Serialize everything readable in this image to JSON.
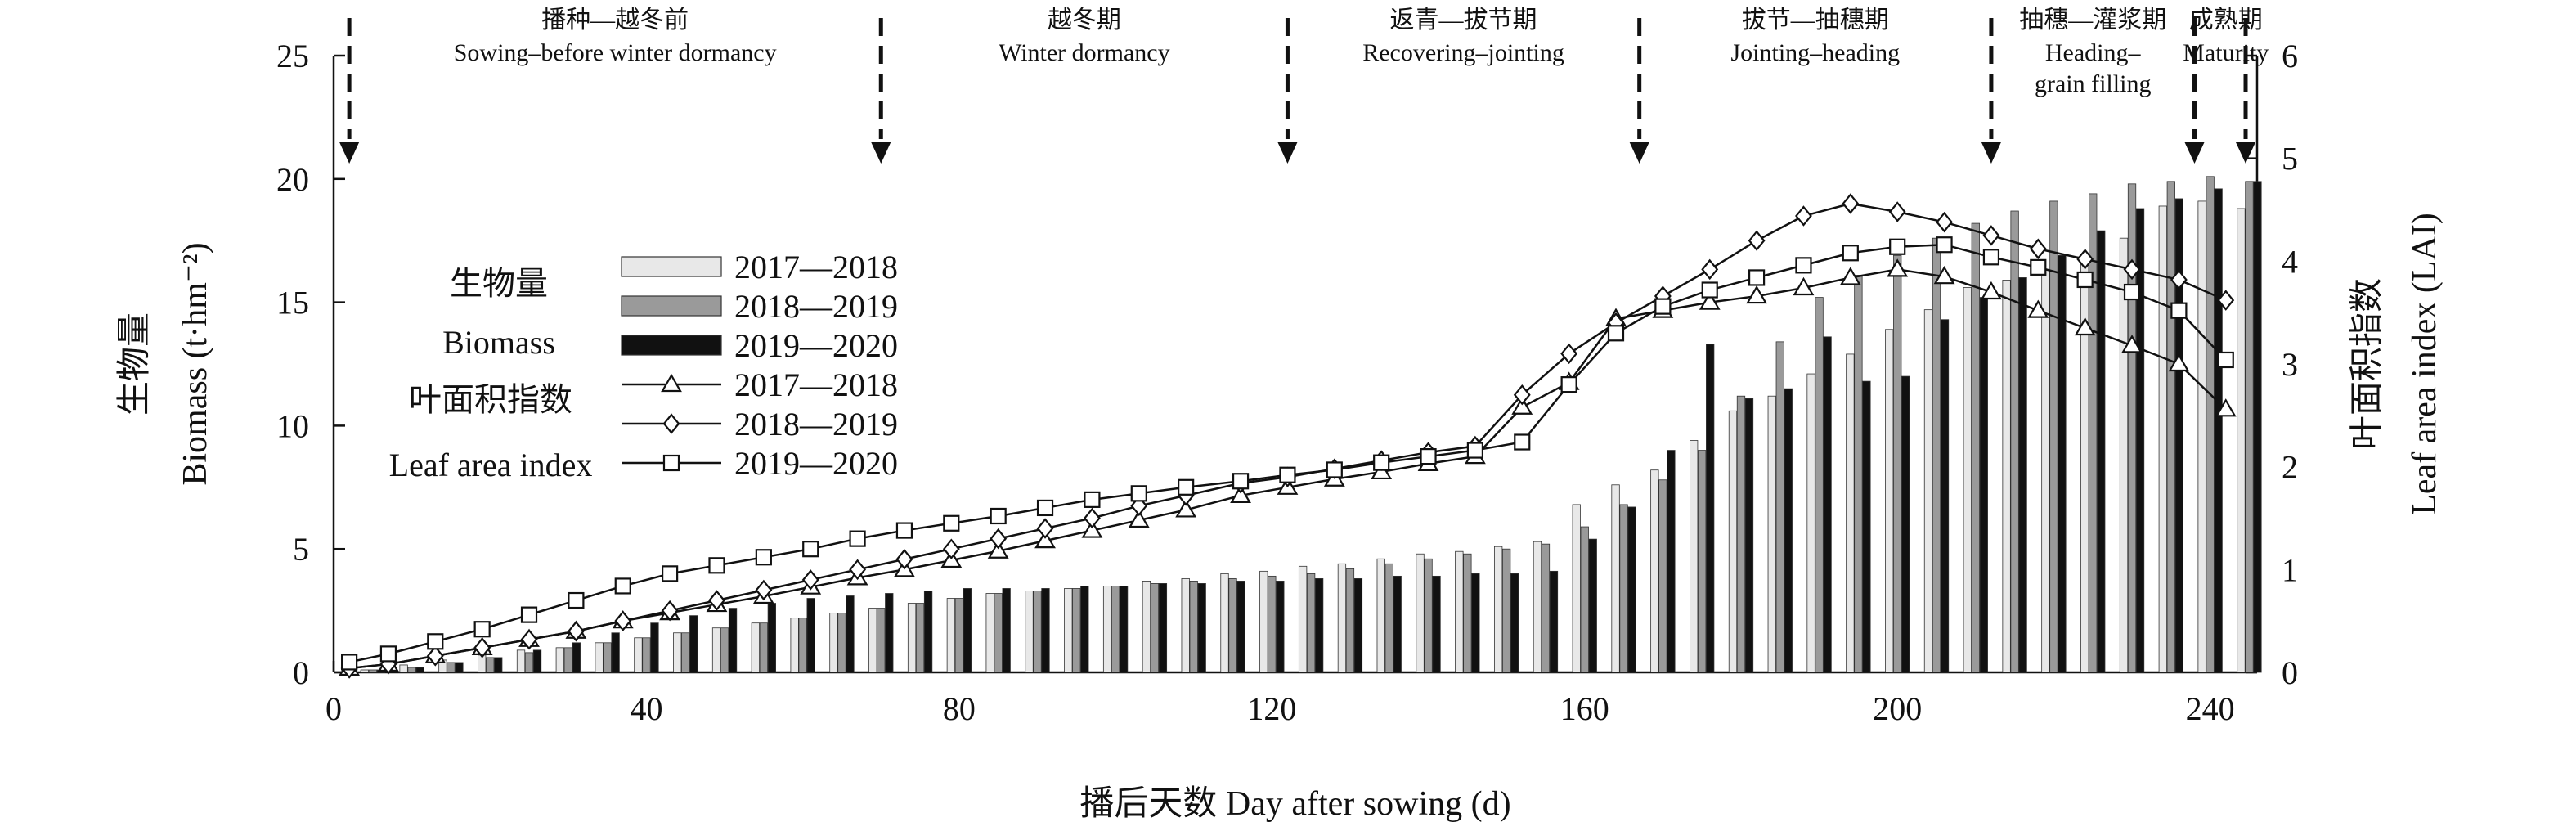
{
  "chart_data": {
    "type": "bar+line",
    "xlabel": "播后天数 Day after sowing (d)",
    "ylabel_left": [
      "生物量",
      "Biomass (t·hm⁻²)"
    ],
    "ylabel_right": [
      "叶面积指数",
      "Leaf area index (LAI)"
    ],
    "xlim": [
      0,
      246
    ],
    "ylim_left": [
      0,
      25
    ],
    "ylim_right": [
      0,
      6
    ],
    "x_ticks": [
      "0",
      "40",
      "80",
      "120",
      "160",
      "200",
      "240"
    ],
    "y_left_ticks": [
      "0",
      "5",
      "10",
      "15",
      "20",
      "25"
    ],
    "y_right_ticks": [
      "0",
      "1",
      "2",
      "3",
      "4",
      "5",
      "6"
    ],
    "stage_boundaries": [
      2,
      70,
      122,
      167,
      212,
      238,
      251
    ],
    "stages": [
      {
        "cn": "播种—越冬前",
        "en": [
          "Sowing–before winter dormancy"
        ]
      },
      {
        "cn": "越冬期",
        "en": [
          "Winter dormancy"
        ]
      },
      {
        "cn": "返青—拔节期",
        "en": [
          "Recovering–jointing"
        ]
      },
      {
        "cn": "拔节—抽穗期",
        "en": [
          "Jointing–heading"
        ]
      },
      {
        "cn": "抽穗—灌浆期",
        "en": [
          "Heading–",
          "grain filling"
        ]
      },
      {
        "cn": "成熟期",
        "en": [
          "Maturity"
        ]
      }
    ],
    "legend": {
      "biomass_title": [
        "生物量",
        "Biomass"
      ],
      "lai_title": [
        "叶面积指数",
        "Leaf area index"
      ],
      "years": [
        "2017—2018",
        "2018—2019",
        "2019—2020"
      ]
    },
    "biomass": {
      "x": [
        5,
        10,
        15,
        20,
        25,
        30,
        35,
        40,
        45,
        50,
        55,
        60,
        65,
        70,
        75,
        80,
        85,
        90,
        95,
        100,
        105,
        110,
        115,
        120,
        125,
        130,
        135,
        140,
        145,
        150,
        155,
        160,
        165,
        170,
        175,
        180,
        185,
        190,
        195,
        200,
        205,
        210,
        215,
        220,
        225,
        230,
        235,
        240,
        245
      ],
      "series": [
        {
          "name": "2017—2018",
          "color": "#e8e8e8",
          "values": [
            0.1,
            0.3,
            0.5,
            0.7,
            0.9,
            1.0,
            1.2,
            1.4,
            1.6,
            1.8,
            2.0,
            2.2,
            2.4,
            2.6,
            2.8,
            3.0,
            3.2,
            3.3,
            3.4,
            3.5,
            3.7,
            3.8,
            4.0,
            4.1,
            4.3,
            4.4,
            4.6,
            4.8,
            4.9,
            5.1,
            5.3,
            6.8,
            7.6,
            8.2,
            9.4,
            10.6,
            11.2,
            12.1,
            12.9,
            13.9,
            14.7,
            15.6,
            15.9,
            16.3,
            16.8,
            17.6,
            18.9,
            19.1,
            18.8
          ]
        },
        {
          "name": "2018—2019",
          "color": "#9a9a9a",
          "values": [
            0.1,
            0.2,
            0.4,
            0.6,
            0.8,
            1.0,
            1.2,
            1.4,
            1.6,
            1.8,
            2.0,
            2.2,
            2.4,
            2.6,
            2.8,
            3.0,
            3.2,
            3.3,
            3.4,
            3.5,
            3.6,
            3.7,
            3.8,
            3.9,
            4.0,
            4.2,
            4.4,
            4.6,
            4.8,
            5.0,
            5.2,
            5.9,
            6.8,
            7.8,
            9.0,
            11.2,
            13.4,
            15.2,
            16.1,
            16.9,
            17.6,
            18.2,
            18.7,
            19.1,
            19.4,
            19.8,
            19.9,
            20.1,
            19.9
          ]
        },
        {
          "name": "2019—2020",
          "color": "#111111",
          "values": [
            0.1,
            0.2,
            0.4,
            0.6,
            0.9,
            1.2,
            1.6,
            2.0,
            2.3,
            2.6,
            2.8,
            3.0,
            3.1,
            3.2,
            3.3,
            3.4,
            3.4,
            3.4,
            3.5,
            3.5,
            3.6,
            3.6,
            3.7,
            3.7,
            3.8,
            3.8,
            3.9,
            3.9,
            4.0,
            4.0,
            4.1,
            5.4,
            6.7,
            9.0,
            13.3,
            11.1,
            11.5,
            13.6,
            11.8,
            12.0,
            14.3,
            15.2,
            16.0,
            16.9,
            17.9,
            18.8,
            19.2,
            19.6,
            19.9
          ]
        }
      ]
    },
    "lai": {
      "series": [
        {
          "name": "2017—2018",
          "marker": "triangle",
          "x": [
            2,
            7,
            13,
            19,
            25,
            31,
            37,
            43,
            49,
            55,
            61,
            67,
            73,
            79,
            85,
            91,
            97,
            103,
            109,
            116,
            122,
            128,
            134,
            140,
            146,
            152,
            158,
            164,
            170,
            176,
            182,
            188,
            194,
            200,
            206,
            212,
            218,
            224,
            230,
            236,
            242
          ],
          "values": [
            0.04,
            0.08,
            0.16,
            0.24,
            0.32,
            0.4,
            0.5,
            0.58,
            0.66,
            0.74,
            0.83,
            0.92,
            1.0,
            1.09,
            1.18,
            1.28,
            1.38,
            1.48,
            1.58,
            1.72,
            1.8,
            1.88,
            1.95,
            2.03,
            2.1,
            2.58,
            2.82,
            3.44,
            3.52,
            3.6,
            3.66,
            3.74,
            3.84,
            3.92,
            3.85,
            3.7,
            3.52,
            3.35,
            3.18,
            3.0,
            2.56
          ]
        },
        {
          "name": "2018—2019",
          "marker": "diamond",
          "x": [
            2,
            7,
            13,
            19,
            25,
            31,
            37,
            43,
            49,
            55,
            61,
            67,
            73,
            79,
            85,
            91,
            97,
            103,
            109,
            116,
            122,
            128,
            134,
            140,
            146,
            152,
            158,
            164,
            170,
            176,
            182,
            188,
            194,
            200,
            206,
            212,
            218,
            224,
            230,
            236,
            242
          ],
          "values": [
            0.04,
            0.08,
            0.16,
            0.24,
            0.32,
            0.4,
            0.5,
            0.6,
            0.7,
            0.8,
            0.9,
            1.0,
            1.1,
            1.2,
            1.3,
            1.4,
            1.5,
            1.62,
            1.72,
            1.84,
            1.9,
            1.98,
            2.06,
            2.14,
            2.2,
            2.7,
            3.1,
            3.4,
            3.66,
            3.92,
            4.2,
            4.44,
            4.56,
            4.48,
            4.38,
            4.25,
            4.12,
            4.02,
            3.92,
            3.82,
            3.62
          ]
        },
        {
          "name": "2019—2020",
          "marker": "square",
          "x": [
            2,
            7,
            13,
            19,
            25,
            31,
            37,
            43,
            49,
            55,
            61,
            67,
            73,
            79,
            85,
            91,
            97,
            103,
            109,
            116,
            122,
            128,
            134,
            140,
            146,
            152,
            158,
            164,
            170,
            176,
            182,
            188,
            194,
            200,
            206,
            212,
            218,
            224,
            230,
            236,
            242
          ],
          "values": [
            0.1,
            0.18,
            0.3,
            0.42,
            0.56,
            0.7,
            0.84,
            0.96,
            1.04,
            1.12,
            1.2,
            1.3,
            1.38,
            1.45,
            1.52,
            1.6,
            1.68,
            1.74,
            1.8,
            1.86,
            1.92,
            1.97,
            2.04,
            2.1,
            2.16,
            2.24,
            2.8,
            3.3,
            3.56,
            3.72,
            3.84,
            3.96,
            4.08,
            4.14,
            4.16,
            4.04,
            3.94,
            3.82,
            3.7,
            3.52,
            3.04
          ]
        }
      ]
    }
  }
}
